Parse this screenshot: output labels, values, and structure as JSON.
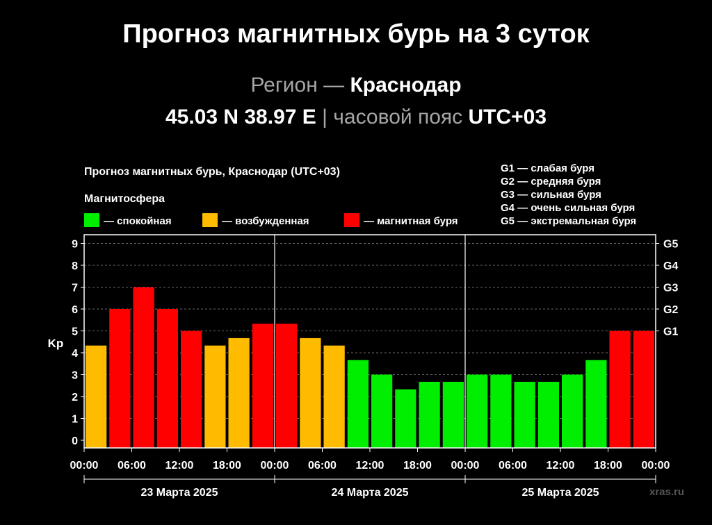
{
  "header": {
    "title": "Прогноз магнитных бурь на 3 суток",
    "region_label": "Регион —",
    "region_name": "Краснодар",
    "coords": "45.03 N 38.97 E",
    "separator": "|",
    "tz_label": "часовой пояс",
    "tz_value": "UTC+03"
  },
  "watermark": "xras.ru",
  "chart_data": {
    "type": "bar",
    "title": "Прогноз магнитных бурь, Краснодар (UTC+03)",
    "legend_title": "Магнитосфера",
    "legend": [
      {
        "key": "quiet",
        "label": "— спокойная",
        "color": "#00ee00"
      },
      {
        "key": "unsettled",
        "label": "— возбужденная",
        "color": "#ffbb00"
      },
      {
        "key": "storm",
        "label": "— магнитная буря",
        "color": "#ff0000"
      }
    ],
    "g_scale_legend": [
      "G1 — слабая буря",
      "G2 — средняя буря",
      "G3 — сильная буря",
      "G4 — очень сильная буря",
      "G5 — экстремальная буря"
    ],
    "ylabel": "Kp",
    "ylim": [
      0,
      9.4
    ],
    "y_ticks": [
      "0",
      "1",
      "2",
      "3",
      "4",
      "5",
      "6",
      "7",
      "8",
      "9"
    ],
    "right_ticks": [
      {
        "label": "G1",
        "value": 5
      },
      {
        "label": "G2",
        "value": 6
      },
      {
        "label": "G3",
        "value": 7
      },
      {
        "label": "G4",
        "value": 8
      },
      {
        "label": "G5",
        "value": 9
      }
    ],
    "x_ticks": [
      "00:00",
      "06:00",
      "12:00",
      "18:00",
      "00:00",
      "06:00",
      "12:00",
      "18:00",
      "00:00",
      "06:00",
      "12:00",
      "18:00",
      "00:00"
    ],
    "days": [
      "23 Марта 2025",
      "24 Марта 2025",
      "25 Марта 2025"
    ],
    "grid": "dashed horizontal",
    "values": [
      4.33,
      6,
      7,
      6,
      5,
      4.33,
      4.67,
      5.33,
      5.33,
      4.67,
      4.33,
      3.67,
      3,
      2.33,
      2.67,
      2.67,
      3,
      3,
      2.67,
      2.67,
      3,
      3.67,
      5,
      5
    ],
    "levels": [
      "unsettled",
      "storm",
      "storm",
      "storm",
      "storm",
      "unsettled",
      "unsettled",
      "storm",
      "storm",
      "unsettled",
      "unsettled",
      "quiet",
      "quiet",
      "quiet",
      "quiet",
      "quiet",
      "quiet",
      "quiet",
      "quiet",
      "quiet",
      "quiet",
      "quiet",
      "storm",
      "storm"
    ]
  }
}
